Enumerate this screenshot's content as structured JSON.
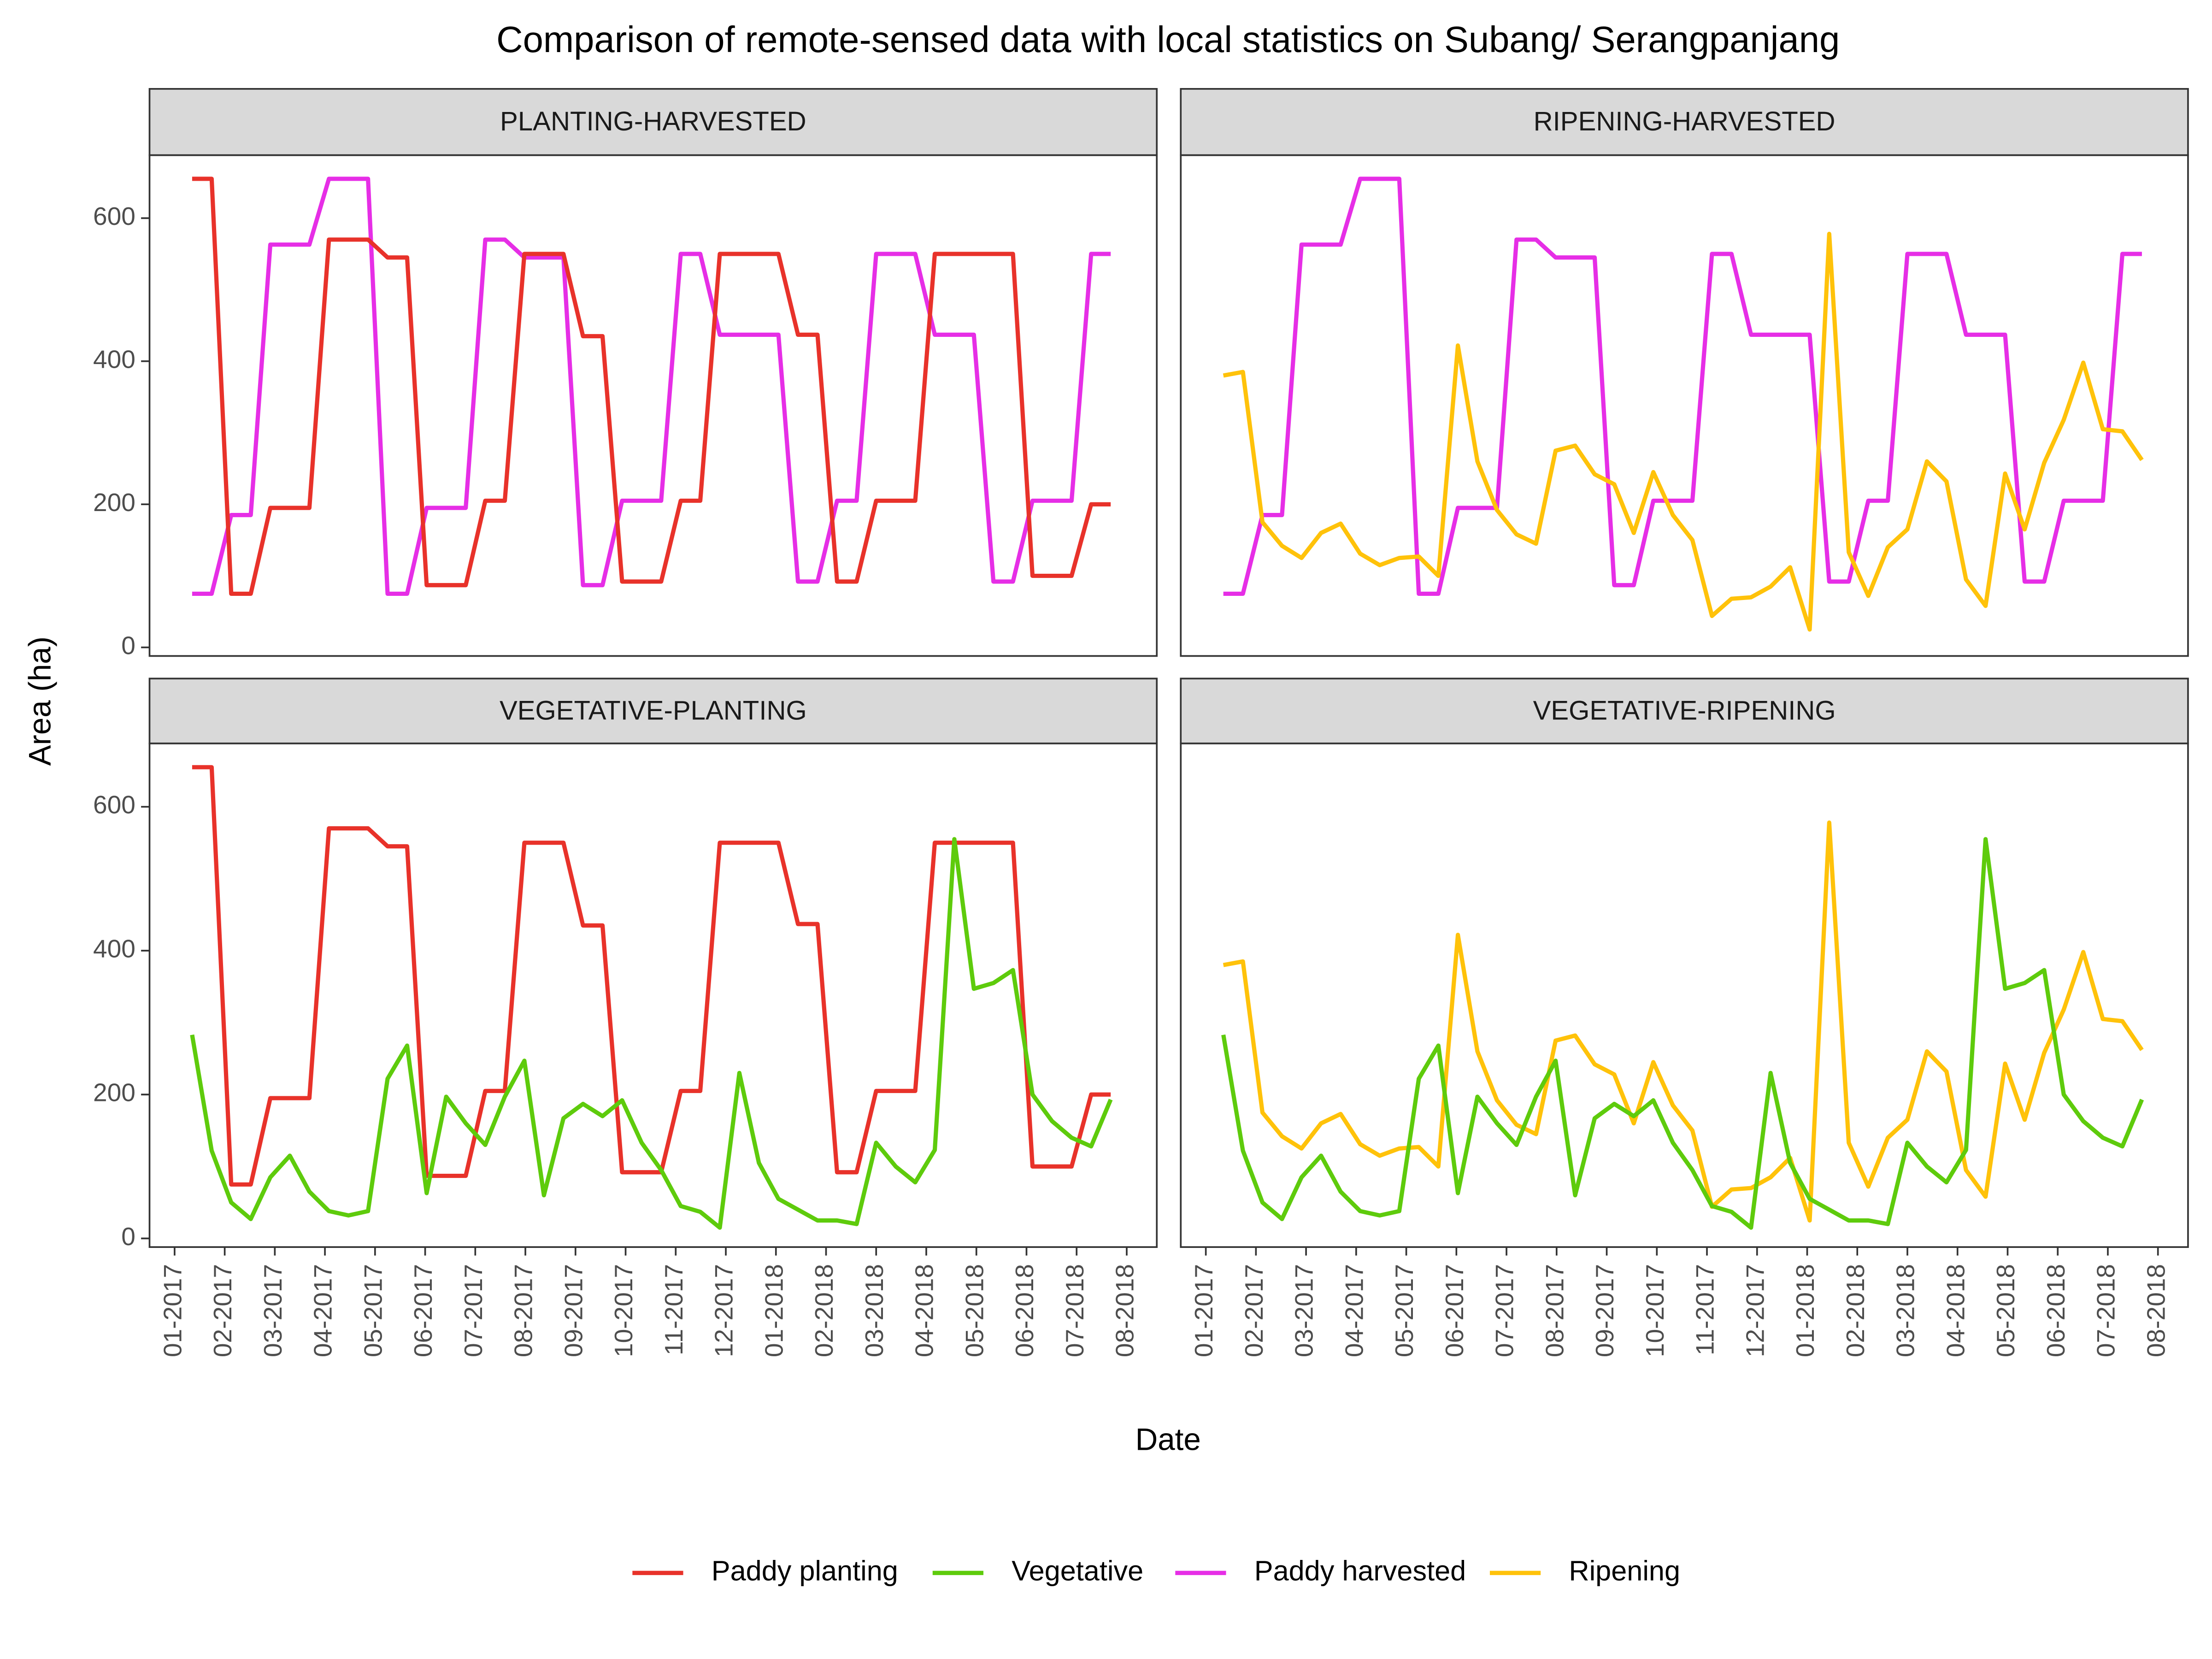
{
  "title": "Comparison of remote-sensed data with local statistics on Subang/ Serangpanjang",
  "x_label": "Date",
  "y_label": "Area (ha)",
  "x": [
    0.35,
    0.74,
    1.13,
    1.52,
    1.91,
    2.3,
    2.69,
    3.08,
    3.47,
    3.86,
    4.25,
    4.64,
    5.03,
    5.42,
    5.81,
    6.2,
    6.59,
    6.98,
    7.37,
    7.76,
    8.15,
    8.54,
    8.93,
    9.32,
    9.71,
    10.1,
    10.49,
    10.88,
    11.27,
    11.66,
    12.05,
    12.44,
    12.83,
    13.22,
    13.61,
    14.0,
    14.39,
    14.78,
    15.17,
    15.56,
    15.95,
    16.34,
    16.73,
    17.12,
    17.51,
    17.9,
    18.29,
    18.68
  ],
  "xlim": [
    -0.5,
    19.6
  ],
  "xticks": [
    {
      "value": 0,
      "label": "01-2017"
    },
    {
      "value": 1,
      "label": "02-2017"
    },
    {
      "value": 2,
      "label": "03-2017"
    },
    {
      "value": 3,
      "label": "04-2017"
    },
    {
      "value": 4,
      "label": "05-2017"
    },
    {
      "value": 5,
      "label": "06-2017"
    },
    {
      "value": 6,
      "label": "07-2017"
    },
    {
      "value": 7,
      "label": "08-2017"
    },
    {
      "value": 8,
      "label": "09-2017"
    },
    {
      "value": 9,
      "label": "10-2017"
    },
    {
      "value": 10,
      "label": "11-2017"
    },
    {
      "value": 11,
      "label": "12-2017"
    },
    {
      "value": 12,
      "label": "01-2018"
    },
    {
      "value": 13,
      "label": "02-2018"
    },
    {
      "value": 14,
      "label": "03-2018"
    },
    {
      "value": 15,
      "label": "04-2018"
    },
    {
      "value": 16,
      "label": "05-2018"
    },
    {
      "value": 17,
      "label": "06-2018"
    },
    {
      "value": 18,
      "label": "07-2018"
    },
    {
      "value": 19,
      "label": "08-2018"
    }
  ],
  "ylim": [
    -12,
    688
  ],
  "yticks": [
    0,
    200,
    400,
    600
  ],
  "legend_position": "bottom",
  "legend": [
    {
      "name": "Paddy planting",
      "color": "#e8322a"
    },
    {
      "name": "Vegetative",
      "color": "#5ecb0c"
    },
    {
      "name": "Paddy harvested",
      "color": "#e62ee6"
    },
    {
      "name": "Ripening",
      "color": "#ffc20a"
    }
  ],
  "chart_data": [
    {
      "type": "line",
      "title": "PLANTING-HARVESTED",
      "series": [
        {
          "name": "Paddy harvested",
          "color": "#e62ee6",
          "values": [
            75,
            75,
            185,
            185,
            563,
            563,
            563,
            655,
            655,
            655,
            75,
            75,
            195,
            195,
            195,
            570,
            570,
            545,
            545,
            545,
            87,
            87,
            205,
            205,
            205,
            550,
            550,
            437,
            437,
            437,
            437,
            92,
            92,
            205,
            205,
            550,
            550,
            550,
            437,
            437,
            437,
            92,
            92,
            205,
            205,
            205,
            550,
            550
          ]
        },
        {
          "name": "Paddy planting",
          "color": "#e8322a",
          "values": [
            655,
            655,
            75,
            75,
            195,
            195,
            195,
            570,
            570,
            570,
            545,
            545,
            87,
            87,
            87,
            205,
            205,
            550,
            550,
            550,
            435,
            435,
            92,
            92,
            92,
            205,
            205,
            550,
            550,
            550,
            550,
            437,
            437,
            92,
            92,
            205,
            205,
            205,
            550,
            550,
            550,
            550,
            550,
            100,
            100,
            100,
            200,
            200
          ]
        }
      ]
    },
    {
      "type": "line",
      "title": "RIPENING-HARVESTED",
      "series": [
        {
          "name": "Paddy harvested",
          "color": "#e62ee6",
          "values": [
            75,
            75,
            185,
            185,
            563,
            563,
            563,
            655,
            655,
            655,
            75,
            75,
            195,
            195,
            195,
            570,
            570,
            545,
            545,
            545,
            87,
            87,
            205,
            205,
            205,
            550,
            550,
            437,
            437,
            437,
            437,
            92,
            92,
            205,
            205,
            550,
            550,
            550,
            437,
            437,
            437,
            92,
            92,
            205,
            205,
            205,
            550,
            550
          ]
        },
        {
          "name": "Ripening",
          "color": "#ffc20a",
          "values": [
            380,
            385,
            175,
            142,
            125,
            160,
            173,
            131,
            115,
            125,
            127,
            100,
            422,
            260,
            192,
            158,
            145,
            275,
            282,
            242,
            228,
            160,
            245,
            185,
            150,
            44,
            68,
            70,
            85,
            112,
            25,
            578,
            133,
            72,
            140,
            165,
            260,
            232,
            95,
            58,
            243,
            165,
            258,
            318,
            398,
            305,
            302,
            262
          ]
        }
      ]
    },
    {
      "type": "line",
      "title": "VEGETATIVE-PLANTING",
      "series": [
        {
          "name": "Paddy planting",
          "color": "#e8322a",
          "values": [
            655,
            655,
            75,
            75,
            195,
            195,
            195,
            570,
            570,
            570,
            545,
            545,
            87,
            87,
            87,
            205,
            205,
            550,
            550,
            550,
            435,
            435,
            92,
            92,
            92,
            205,
            205,
            550,
            550,
            550,
            550,
            437,
            437,
            92,
            92,
            205,
            205,
            205,
            550,
            550,
            550,
            550,
            550,
            100,
            100,
            100,
            200,
            200
          ]
        },
        {
          "name": "Vegetative",
          "color": "#5ecb0c",
          "values": [
            283,
            122,
            50,
            27,
            85,
            115,
            65,
            38,
            32,
            38,
            222,
            268,
            63,
            197,
            160,
            130,
            197,
            247,
            60,
            167,
            187,
            170,
            192,
            133,
            95,
            45,
            37,
            15,
            230,
            105,
            55,
            40,
            25,
            25,
            20,
            133,
            100,
            78,
            123,
            555,
            347,
            355,
            373,
            200,
            163,
            140,
            128,
            193
          ]
        }
      ]
    },
    {
      "type": "line",
      "title": "VEGETATIVE-RIPENING",
      "series": [
        {
          "name": "Ripening",
          "color": "#ffc20a",
          "values": [
            380,
            385,
            175,
            142,
            125,
            160,
            173,
            131,
            115,
            125,
            127,
            100,
            422,
            260,
            192,
            158,
            145,
            275,
            282,
            242,
            228,
            160,
            245,
            185,
            150,
            44,
            68,
            70,
            85,
            112,
            25,
            578,
            133,
            72,
            140,
            165,
            260,
            232,
            95,
            58,
            243,
            165,
            258,
            318,
            398,
            305,
            302,
            262
          ]
        },
        {
          "name": "Vegetative",
          "color": "#5ecb0c",
          "values": [
            283,
            122,
            50,
            27,
            85,
            115,
            65,
            38,
            32,
            38,
            222,
            268,
            63,
            197,
            160,
            130,
            197,
            247,
            60,
            167,
            187,
            170,
            192,
            133,
            95,
            45,
            37,
            15,
            230,
            105,
            55,
            40,
            25,
            25,
            20,
            133,
            100,
            78,
            123,
            555,
            347,
            355,
            373,
            200,
            163,
            140,
            128,
            193
          ]
        }
      ]
    }
  ]
}
